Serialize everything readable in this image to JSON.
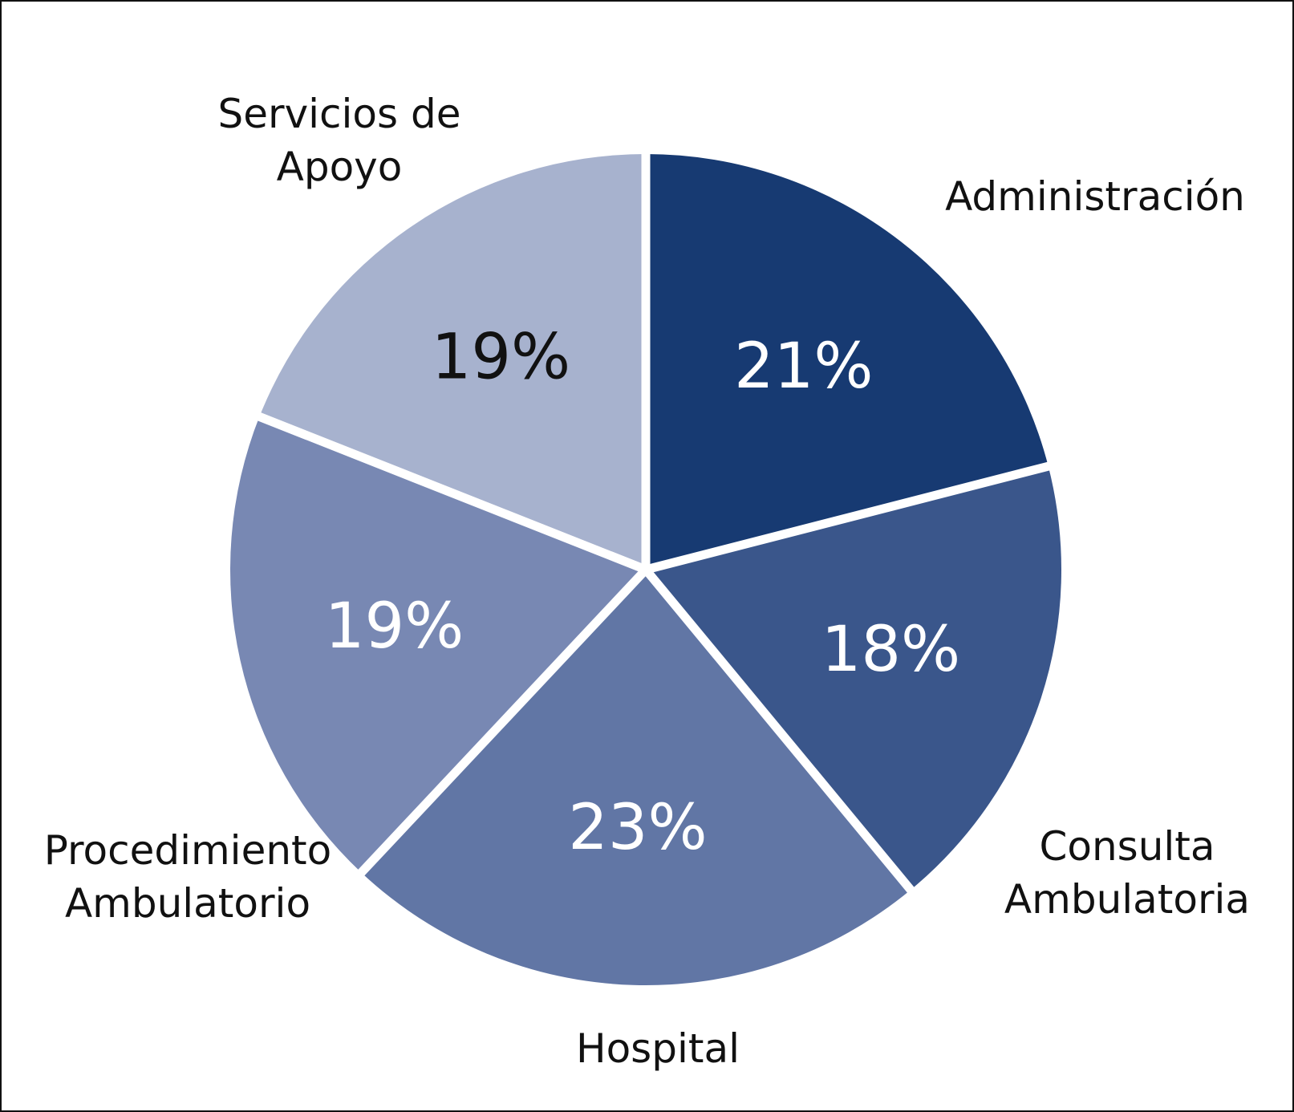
{
  "chart_data": {
    "type": "pie",
    "title": "",
    "start_angle_deg": 0,
    "direction": "clockwise",
    "slices": [
      {
        "label_lines": [
          "Administración"
        ],
        "value": 21,
        "value_label": "21%",
        "color": "#173a72",
        "value_text_color": "#ffffff"
      },
      {
        "label_lines": [
          "Consulta",
          "Ambulatoria"
        ],
        "value": 18,
        "value_label": "18%",
        "color": "#3a568b",
        "value_text_color": "#ffffff"
      },
      {
        "label_lines": [
          "Hospital"
        ],
        "value": 23,
        "value_label": "23%",
        "color": "#6176a5",
        "value_text_color": "#ffffff"
      },
      {
        "label_lines": [
          "Procedimiento",
          "Ambulatorio"
        ],
        "value": 19,
        "value_label": "19%",
        "color": "#7888b3",
        "value_text_color": "#ffffff"
      },
      {
        "label_lines": [
          "Servicios de",
          "Apoyo"
        ],
        "value": 19,
        "value_label": "19%",
        "color": "#a7b2ce",
        "value_text_color": "#111111"
      }
    ]
  }
}
